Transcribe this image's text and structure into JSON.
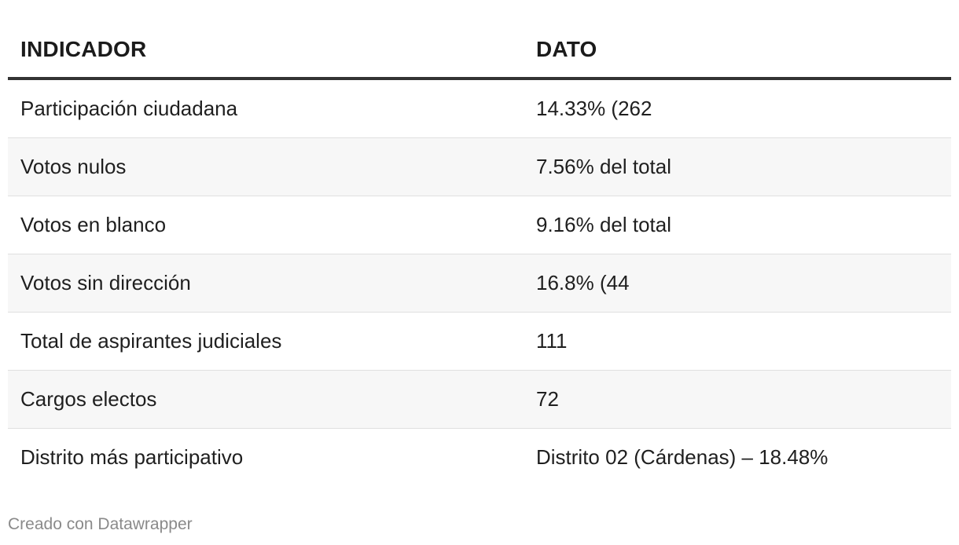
{
  "chart_data": {
    "type": "table",
    "columns": [
      "INDICADOR",
      "DATO"
    ],
    "rows": [
      [
        "Participación ciudadana",
        "14.33% (262"
      ],
      [
        "Votos nulos",
        "7.56% del total"
      ],
      [
        "Votos en blanco",
        "9.16% del total"
      ],
      [
        "Votos sin dirección",
        "16.8% (44"
      ],
      [
        "Total de aspirantes judiciales",
        "111"
      ],
      [
        "Cargos electos",
        "72"
      ],
      [
        "Distrito más participativo",
        "Distrito 02 (Cárdenas) – 18.48%"
      ]
    ]
  },
  "footer": {
    "credit": "Creado con Datawrapper"
  }
}
